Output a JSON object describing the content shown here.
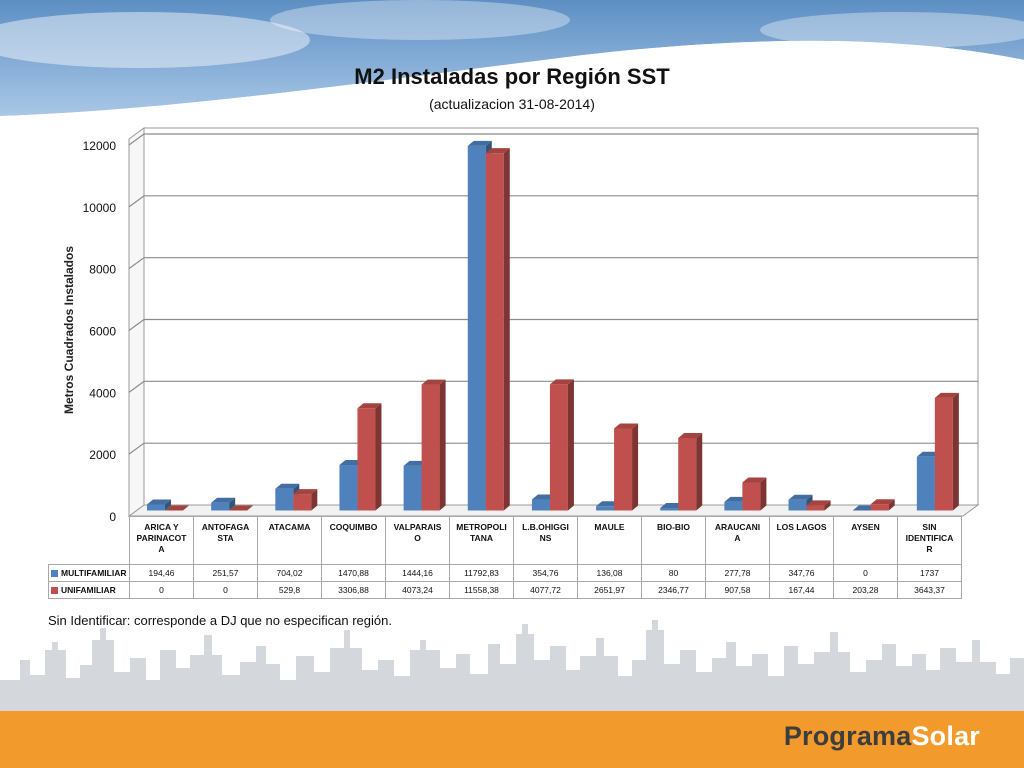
{
  "slide": {
    "note": "Sin Identificar: corresponde a DJ que no especifican región.",
    "brand_part1": "Programa",
    "brand_part2": "Solar",
    "footer_color": "#f29a2b"
  },
  "chart_data": {
    "type": "bar",
    "title": "M2 Instaladas por Región SST",
    "subtitle": "(actualizacion 31-08-2014)",
    "xlabel": "",
    "ylabel": "Metros Cuadrados Instalados",
    "ylim": [
      0,
      12000
    ],
    "yticks": [
      "0",
      "2000",
      "4000",
      "6000",
      "8000",
      "10000",
      "12000"
    ],
    "grid": true,
    "legend": "data-table",
    "categories": [
      "ARICA Y PARINACOTA",
      "ANTOFAGASTA",
      "ATACAMA",
      "COQUIMBO",
      "VALPARAISO",
      "METROPOLITANA",
      "L.B.OHIGGINS",
      "MAULE",
      "BIO-BIO",
      "ARAUCANIA",
      "LOS LAGOS",
      "AYSEN",
      "SIN IDENTIFICAR"
    ],
    "category_labels": [
      [
        "ARICA Y",
        "PARINACOT",
        "A"
      ],
      [
        "ANTOFAGA",
        "STA"
      ],
      [
        "ATACAMA"
      ],
      [
        "COQUIMBO"
      ],
      [
        "VALPARAIS",
        "O"
      ],
      [
        "METROPOLI",
        "TANA"
      ],
      [
        "L.B.OHIGGI",
        "NS"
      ],
      [
        "MAULE"
      ],
      [
        "BIO-BIO"
      ],
      [
        "ARAUCANI",
        "A"
      ],
      [
        "LOS LAGOS"
      ],
      [
        "AYSEN"
      ],
      [
        "SIN",
        "IDENTIFICA",
        "R"
      ]
    ],
    "series": [
      {
        "name": "MULTIFAMILIAR",
        "color": "#4f81bd",
        "values": [
          194.46,
          251.57,
          704.02,
          1470.88,
          1444.16,
          11792.83,
          354.76,
          136.08,
          80,
          277.78,
          347.76,
          0,
          1737
        ],
        "labels": [
          "194,46",
          "251,57",
          "704,02",
          "1470,88",
          "1444,16",
          "11792,83",
          "354,76",
          "136,08",
          "80",
          "277,78",
          "347,76",
          "0",
          "1737"
        ]
      },
      {
        "name": "UNIFAMILIAR",
        "color": "#c0504d",
        "values": [
          0,
          0,
          529.8,
          3306.88,
          4073.24,
          11558.38,
          4077.72,
          2651.97,
          2346.77,
          907.58,
          167.44,
          203.28,
          3643.37
        ],
        "labels": [
          "0",
          "0",
          "529,8",
          "3306,88",
          "4073,24",
          "11558,38",
          "4077,72",
          "2651,97",
          "2346,77",
          "907,58",
          "167,44",
          "203,28",
          "3643,37"
        ]
      }
    ]
  }
}
